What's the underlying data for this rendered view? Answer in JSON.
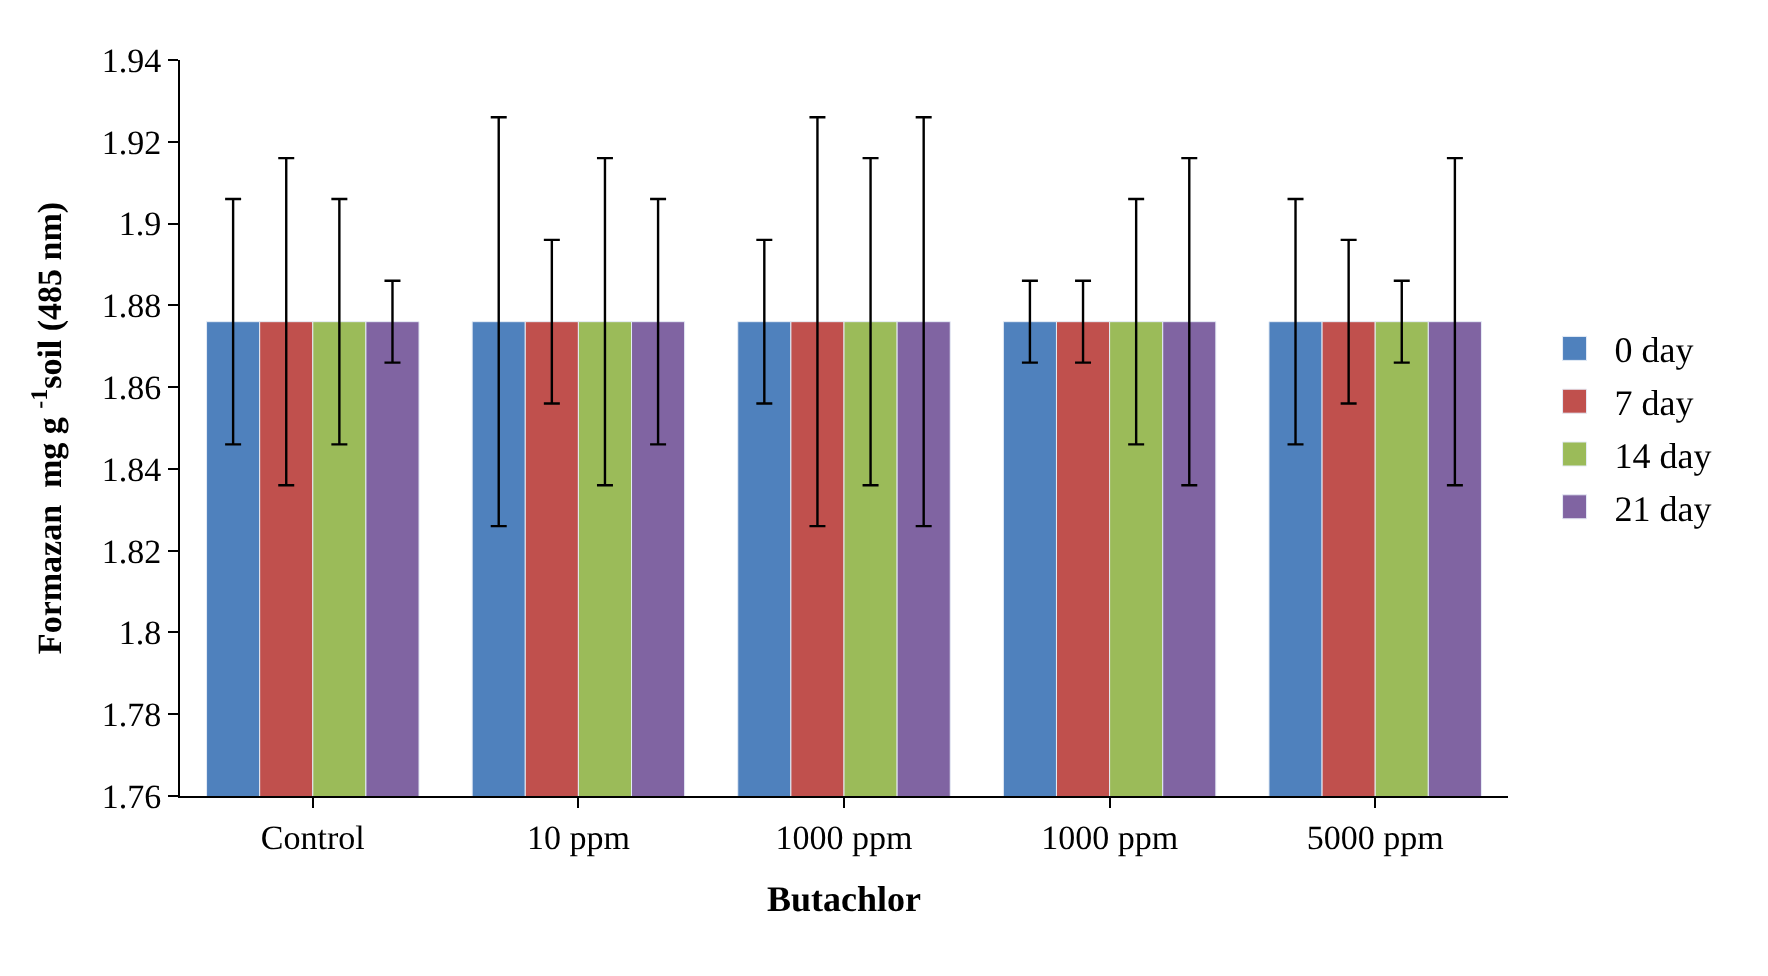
{
  "chart_data": {
    "type": "bar",
    "xlabel": "Butachlor",
    "ylabel": "Formazan  mg g $^{-1}$soil (485 nm)",
    "categories": [
      "Control",
      "10 ppm",
      "1000 ppm",
      "1000 ppm",
      "5000 ppm"
    ],
    "series": [
      {
        "name": "0 day",
        "color": "#4f81bd",
        "values": [
          1.876,
          1.876,
          1.876,
          1.876,
          1.876
        ],
        "errors": [
          0.03,
          0.05,
          0.02,
          0.01,
          0.03
        ]
      },
      {
        "name": "7 day",
        "color": "#c0504d",
        "values": [
          1.876,
          1.876,
          1.876,
          1.876,
          1.876
        ],
        "errors": [
          0.04,
          0.02,
          0.05,
          0.01,
          0.02
        ]
      },
      {
        "name": "14 day",
        "color": "#9bbb59",
        "values": [
          1.876,
          1.876,
          1.876,
          1.876,
          1.876
        ],
        "errors": [
          0.03,
          0.04,
          0.04,
          0.03,
          0.01
        ]
      },
      {
        "name": "21 day",
        "color": "#8064a2",
        "values": [
          1.876,
          1.876,
          1.876,
          1.876,
          1.876
        ],
        "errors": [
          0.01,
          0.03,
          0.05,
          0.04,
          0.04
        ]
      }
    ],
    "ylim": [
      1.76,
      1.94
    ],
    "yticks": [
      1.76,
      1.78,
      1.8,
      1.82,
      1.84,
      1.86,
      1.88,
      1.9,
      1.92,
      1.94
    ],
    "legend": "right"
  }
}
